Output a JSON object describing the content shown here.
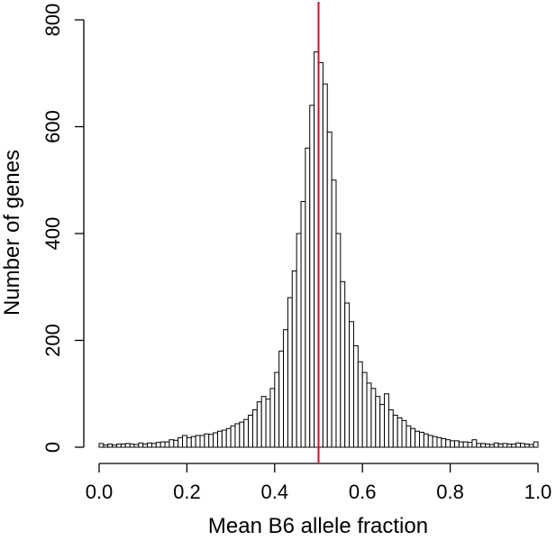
{
  "chart_data": {
    "type": "bar",
    "title": "",
    "xlabel": "Mean B6 allele fraction",
    "ylabel": "Number of genes",
    "xlim": [
      0.0,
      1.0
    ],
    "ylim": [
      0,
      800
    ],
    "x_ticks": [
      "0.0",
      "0.2",
      "0.4",
      "0.6",
      "0.8",
      "1.0"
    ],
    "y_ticks": [
      "0",
      "200",
      "400",
      "600",
      "800"
    ],
    "bin_width": 0.01,
    "bin_starts": [
      0.0,
      0.01,
      0.02,
      0.03,
      0.04,
      0.05,
      0.06,
      0.07,
      0.08,
      0.09,
      0.1,
      0.11,
      0.12,
      0.13,
      0.14,
      0.15,
      0.16,
      0.17,
      0.18,
      0.19,
      0.2,
      0.21,
      0.22,
      0.23,
      0.24,
      0.25,
      0.26,
      0.27,
      0.28,
      0.29,
      0.3,
      0.31,
      0.32,
      0.33,
      0.34,
      0.35,
      0.36,
      0.37,
      0.38,
      0.39,
      0.4,
      0.41,
      0.42,
      0.43,
      0.44,
      0.45,
      0.46,
      0.47,
      0.48,
      0.49,
      0.5,
      0.51,
      0.52,
      0.53,
      0.54,
      0.55,
      0.56,
      0.57,
      0.58,
      0.59,
      0.6,
      0.61,
      0.62,
      0.63,
      0.64,
      0.65,
      0.66,
      0.67,
      0.68,
      0.69,
      0.7,
      0.71,
      0.72,
      0.73,
      0.74,
      0.75,
      0.76,
      0.77,
      0.78,
      0.79,
      0.8,
      0.81,
      0.82,
      0.83,
      0.84,
      0.85,
      0.86,
      0.87,
      0.88,
      0.89,
      0.9,
      0.91,
      0.92,
      0.93,
      0.94,
      0.95,
      0.96,
      0.97,
      0.98,
      0.99
    ],
    "values": [
      7,
      4,
      6,
      4,
      6,
      6,
      7,
      6,
      5,
      8,
      6,
      8,
      7,
      9,
      10,
      10,
      14,
      13,
      18,
      22,
      18,
      20,
      22,
      22,
      25,
      24,
      27,
      30,
      32,
      35,
      40,
      44,
      47,
      52,
      60,
      70,
      85,
      95,
      90,
      110,
      140,
      180,
      220,
      280,
      330,
      400,
      460,
      560,
      640,
      740,
      720,
      680,
      590,
      500,
      400,
      310,
      270,
      235,
      190,
      160,
      140,
      120,
      110,
      95,
      80,
      100,
      70,
      60,
      55,
      50,
      40,
      35,
      30,
      28,
      25,
      22,
      20,
      18,
      16,
      14,
      12,
      12,
      10,
      10,
      9,
      14,
      7,
      7,
      6,
      5,
      8,
      6,
      7,
      6,
      6,
      8,
      7,
      6,
      5,
      10
    ],
    "reference_line": {
      "x": 0.5,
      "color": "#c8102e"
    },
    "bar_fill": "#ffffff",
    "bar_stroke": "#000000"
  }
}
